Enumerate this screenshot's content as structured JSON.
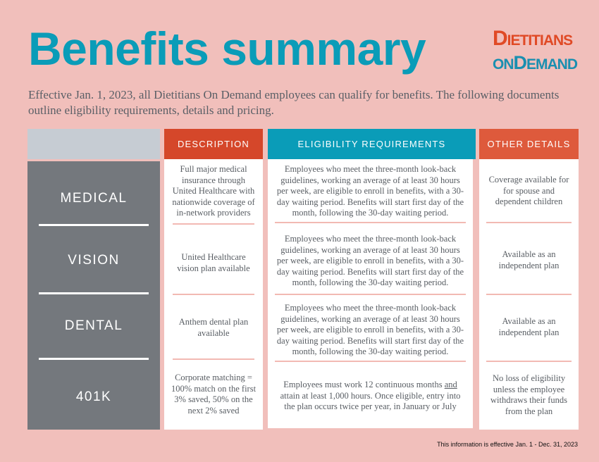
{
  "title": "Benefits summary",
  "logo": {
    "line1_cap": "D",
    "line1_rest": "IETITIANS",
    "line2_cap1": "ON",
    "line2_cap2": "D",
    "line2_rest": "EMAND"
  },
  "intro": "Effective Jan. 1, 2023, all Dietitians On Demand employees can qualify for benefits. The following documents outline eligibility requirements, details and pricing.",
  "headers": {
    "description": "DESCRIPTION",
    "eligibility": "ELIGIBILITY REQUIREMENTS",
    "other": "OTHER DETAILS"
  },
  "rows": [
    {
      "label": "MEDICAL",
      "description": "Full major medical insurance through United Healthcare with nationwide coverage of in-network providers",
      "eligibility": "Employees who meet the three-month look-back guidelines, working an average of at least 30 hours per week, are eligible to enroll in benefits, with a 30-day waiting period. Benefits will start first day of the month, following the 30-day waiting period.",
      "other": "Coverage available for for spouse and dependent children"
    },
    {
      "label": "VISION",
      "description": "United Healthcare vision plan available",
      "eligibility": "Employees who meet the three-month look-back guidelines, working an average of at least 30 hours per week, are eligible to enroll in benefits, with a 30-day waiting period. Benefits will start first day of the month, following the 30-day waiting period.",
      "other": "Available as an independent plan"
    },
    {
      "label": "DENTAL",
      "description": "Anthem dental plan available",
      "eligibility": "Employees who meet the three-month look-back guidelines, working an average of at least 30 hours per week, are eligible to enroll in benefits, with a 30-day waiting period. Benefits will start first day of the month, following the 30-day waiting period.",
      "other": "Available as an independent plan"
    },
    {
      "label": "401K",
      "description": "Corporate matching = 100% match on the first 3% saved, 50% on the next 2% saved",
      "eligibility_pre": "Employees must work 12 continuous months ",
      "eligibility_underlined": "and",
      "eligibility_post": " attain at least 1,000 hours. Once eligible, entry into the plan occurs twice per year, in January or July",
      "other": "No loss of eligibility unless the employee withdraws their funds from the plan"
    }
  ],
  "footer": "This information is effective Jan. 1 - Dec. 31, 2023",
  "colors": {
    "background": "#f1bfbb",
    "teal": "#0a9cb8",
    "orange": "#d5472a",
    "gray": "#74787d"
  }
}
